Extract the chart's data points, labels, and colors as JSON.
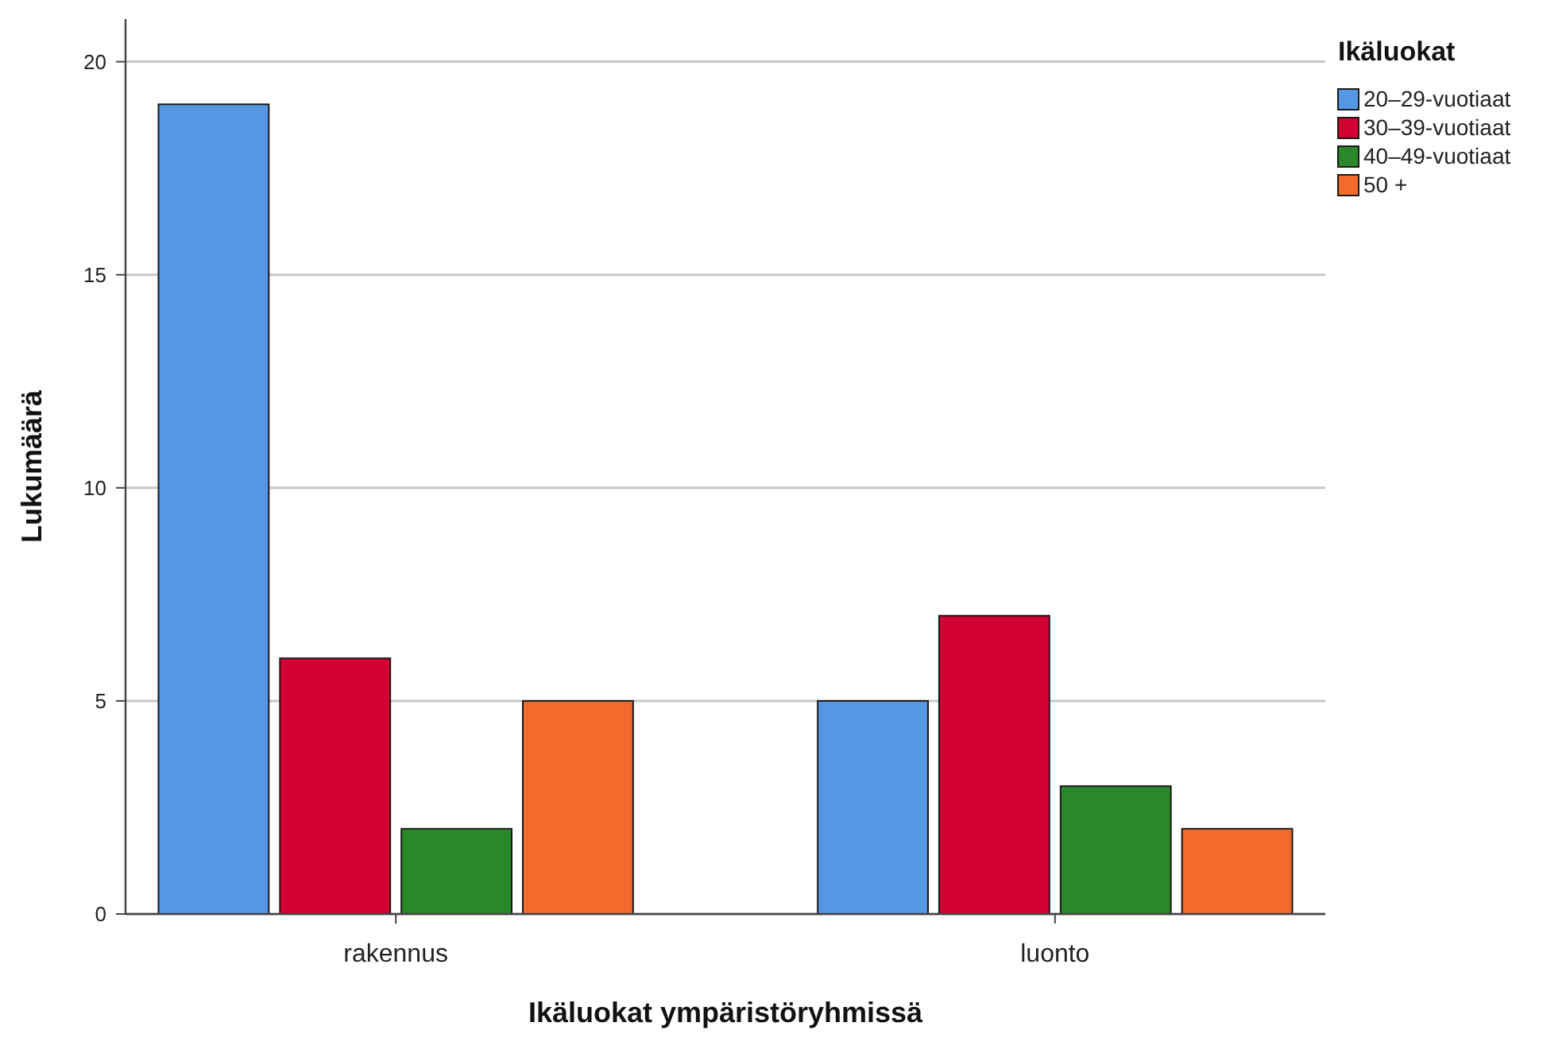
{
  "chart_data": {
    "type": "bar",
    "xlabel": "Ikäluokat ympäristöryhmissä",
    "ylabel": "Lukumäärä",
    "legend_title": "Ikäluokat",
    "categories": [
      "rakennus",
      "luonto"
    ],
    "series": [
      {
        "name": "20–29-vuotiaat",
        "color": "#5597e4",
        "values": [
          19,
          5
        ]
      },
      {
        "name": "30–39-vuotiaat",
        "color": "#d50032",
        "values": [
          6,
          7
        ]
      },
      {
        "name": "40–49-vuotiaat",
        "color": "#2a872a",
        "values": [
          2,
          3
        ]
      },
      {
        "name": "50 +",
        "color": "#f26a2c",
        "values": [
          5,
          2
        ]
      }
    ],
    "ylim": [
      0,
      21
    ],
    "yticks": [
      0,
      5,
      10,
      15,
      20
    ],
    "grid": "y",
    "legend": "top right"
  }
}
